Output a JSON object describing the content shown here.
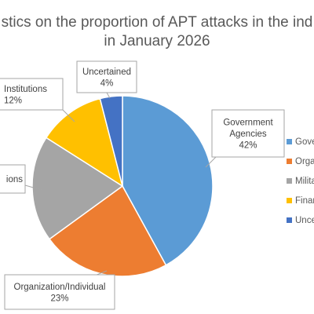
{
  "chart_data": {
    "type": "pie",
    "title_lines": [
      "Statistics on the proportion of APT attacks in the industry",
      "in January 2026"
    ],
    "visible_title_lines": [
      "stics on the proportion of APT attacks in the ind",
      "in January 2026"
    ],
    "slices": [
      {
        "label": "Government Agencies",
        "label_lines": [
          "Government",
          "Agencies"
        ],
        "value": 42,
        "value_text": "42%",
        "color": "#5b9bd5",
        "legend_text": "Gove"
      },
      {
        "label": "Organization/Individual",
        "label_lines": [
          "Organization/Individual"
        ],
        "value": 23,
        "value_text": "23%",
        "color": "#ed7d31",
        "legend_text": "Orga"
      },
      {
        "label": "Military Institutions",
        "label_lines": [
          "ions"
        ],
        "value": 19,
        "value_text": "",
        "color": "#a5a5a5",
        "legend_text": "Milita"
      },
      {
        "label": "Financial Institutions",
        "label_lines": [
          "Institutions"
        ],
        "value": 12,
        "value_text": "12%",
        "color": "#ffc000",
        "legend_text": "Finan"
      },
      {
        "label": "Uncertained",
        "label_lines": [
          "Uncertained"
        ],
        "value": 4,
        "value_text": "4%",
        "color": "#4472c4",
        "legend_text": "Unce"
      }
    ],
    "legend_position": "right",
    "start_angle_deg": 0,
    "direction": "clockwise"
  }
}
